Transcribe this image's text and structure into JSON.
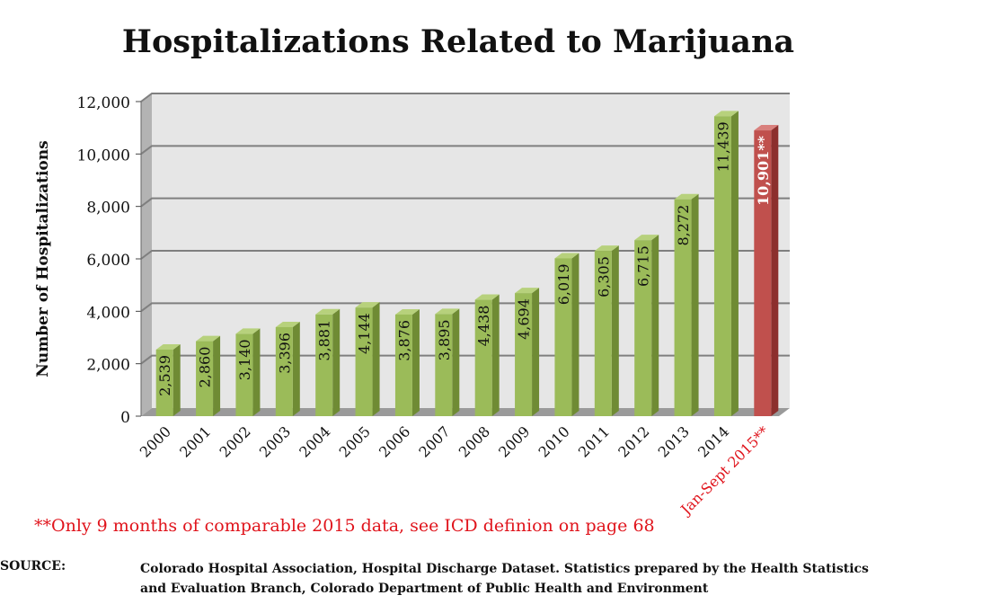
{
  "colors": {
    "bar_green": "#9bbb59",
    "bar_green_side": "#6f8b34",
    "bar_green_top": "#b7d17c",
    "bar_red": "#c0504d",
    "bar_red_side": "#8c2f2d",
    "bar_red_top": "#d9807d",
    "plot_bg": "#e6e6e6",
    "wall_side": "#b3b3b3",
    "floor": "#9a9a9a",
    "gridline": "#7f7f7f",
    "footnote_red": "#e0141c"
  },
  "chart_data": {
    "type": "bar",
    "title": "Hospitalizations Related to Marijuana",
    "xlabel": "",
    "ylabel": "Number of Hospitalizations",
    "ylim": [
      0,
      12000
    ],
    "yticks": [
      0,
      2000,
      4000,
      6000,
      8000,
      10000,
      12000
    ],
    "ytick_labels": [
      "0",
      "2,000",
      "4,000",
      "6,000",
      "8,000",
      "10,000",
      "12,000"
    ],
    "categories": [
      "2000",
      "2001",
      "2002",
      "2003",
      "2004",
      "2005",
      "2006",
      "2007",
      "2008",
      "2009",
      "2010",
      "2011",
      "2012",
      "2013",
      "2014",
      "Jan-Sept 2015**"
    ],
    "values": [
      2539,
      2860,
      3140,
      3396,
      3881,
      4144,
      3876,
      3895,
      4438,
      4694,
      6019,
      6305,
      6715,
      8272,
      11439,
      10901
    ],
    "data_labels": [
      "2,539",
      "2,860",
      "3,140",
      "3,396",
      "3,881",
      "4,144",
      "3,876",
      "3,895",
      "4,438",
      "4,694",
      "6,019",
      "6,305",
      "6,715",
      "8,272",
      "11,439",
      "10,901**"
    ],
    "highlight_index": 15,
    "grid": true
  },
  "footnote": "**Only 9 months of comparable 2015 data, see ICD definion on page 68",
  "source": {
    "label": "SOURCE:",
    "text_line1": "Colorado Hospital Association, Hospital Discharge Dataset. Statistics prepared by the Health Statistics",
    "text_line2": "and Evaluation Branch, Colorado Department of Public Health and Environment"
  }
}
